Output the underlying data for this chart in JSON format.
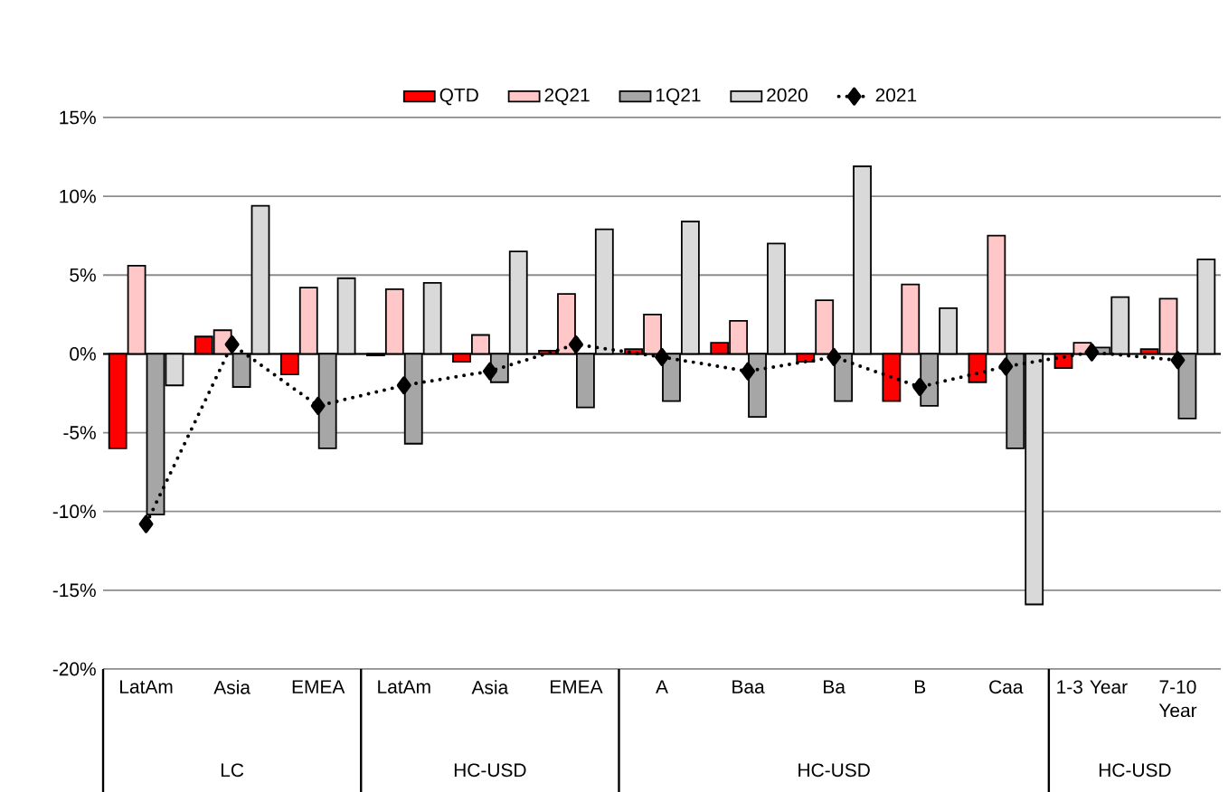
{
  "chart_data": {
    "type": "bar",
    "categories": [
      "LatAm",
      "Asia",
      "EMEA",
      "LatAm",
      "Asia",
      "EMEA",
      "A",
      "Baa",
      "Ba",
      "B",
      "Caa",
      "1-3 Year",
      "7-10 Year"
    ],
    "series": [
      {
        "name": "QTD",
        "color": "#ff0000",
        "values": [
          -6.0,
          1.1,
          -1.3,
          -0.1,
          -0.5,
          0.2,
          0.3,
          0.7,
          -0.5,
          -3.0,
          -1.8,
          -0.9,
          0.3
        ]
      },
      {
        "name": "2Q21",
        "color": "#ffc7c7",
        "values": [
          5.6,
          1.5,
          4.2,
          4.1,
          1.2,
          3.8,
          2.5,
          2.1,
          3.4,
          4.4,
          7.5,
          0.7,
          3.5
        ]
      },
      {
        "name": "1Q21",
        "color": "#a6a6a6",
        "values": [
          -10.2,
          -2.1,
          -6.0,
          -5.7,
          -1.8,
          -3.4,
          -3.0,
          -4.0,
          -3.0,
          -3.3,
          -6.0,
          0.4,
          -4.1
        ]
      },
      {
        "name": "2020",
        "color": "#d9d9d9",
        "values": [
          -2.0,
          9.4,
          4.8,
          4.5,
          6.5,
          7.9,
          8.4,
          7.0,
          11.9,
          2.9,
          -15.9,
          3.6,
          6.0
        ]
      },
      {
        "name": "2021",
        "type": "line",
        "color": "#000000",
        "marker": "diamond",
        "line_style": "dotted",
        "values": [
          -10.8,
          0.6,
          -3.3,
          -2.0,
          -1.1,
          0.6,
          -0.2,
          -1.1,
          -0.2,
          -2.1,
          -0.8,
          0.1,
          -0.4
        ]
      }
    ],
    "ylim": [
      -20,
      15
    ],
    "yticks": [
      {
        "value": -20,
        "label": "-20%"
      },
      {
        "value": -15,
        "label": "-15%"
      },
      {
        "value": -10,
        "label": "-10%"
      },
      {
        "value": -5,
        "label": "-5%"
      },
      {
        "value": 0,
        "label": "0%"
      },
      {
        "value": 5,
        "label": "5%"
      },
      {
        "value": 10,
        "label": "10%"
      },
      {
        "value": 15,
        "label": "15%"
      }
    ],
    "grid": "y",
    "legend": "top",
    "annotations": [
      "LC",
      "HC-USD",
      "HC-USD",
      "HC-USD"
    ]
  }
}
